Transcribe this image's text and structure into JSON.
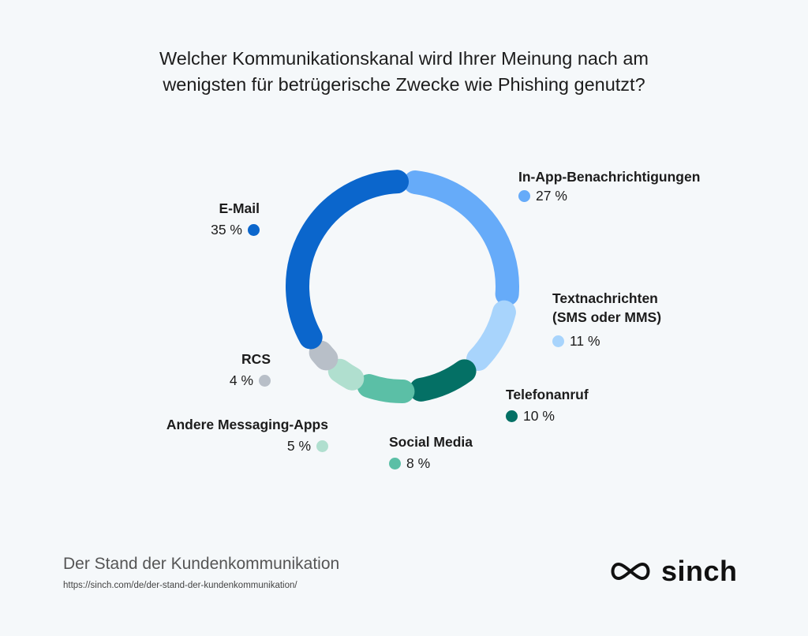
{
  "title_line1": "Welcher Kommunikationskanal wird Ihrer Meinung nach am",
  "title_line2": "wenigsten für betrügerische Zwecke wie Phishing genutzt?",
  "footer": {
    "title": "Der Stand der Kundenkommunikation",
    "url": "https://sinch.com/de/der-stand-der-kundenkommunikation/",
    "logo_text": "sinch",
    "logo_icon": "sinch-swirl-icon"
  },
  "chart_data": {
    "type": "pie",
    "style": "donut",
    "categories": [
      "In-App-Benachrichtigungen",
      "Textnachrichten (SMS oder MMS)",
      "Telefonanruf",
      "Social Media",
      "Andere Messaging-Apps",
      "RCS",
      "E-Mail"
    ],
    "values": [
      27,
      11,
      10,
      8,
      5,
      4,
      35
    ],
    "labels": {
      "inapp": {
        "name": "In-App-Benachrichtigungen",
        "value": "27 %"
      },
      "text_line1": "Textnachrichten",
      "text_line2": "(SMS oder MMS)",
      "text_value": "11 %",
      "phone": {
        "name": "Telefonanruf",
        "value": "10 %"
      },
      "social": {
        "name": "Social Media",
        "value": "8 %"
      },
      "other": {
        "name": "Andere Messaging-Apps",
        "value": "5 %"
      },
      "rcs": {
        "name": "RCS",
        "value": "4 %"
      },
      "email": {
        "name": "E-Mail",
        "value": "35 %"
      }
    },
    "colors": [
      "#66abf9",
      "#a8d4fc",
      "#047065",
      "#5bbfa6",
      "#b0dfcf",
      "#b8bfc8",
      "#0b66cc"
    ]
  }
}
